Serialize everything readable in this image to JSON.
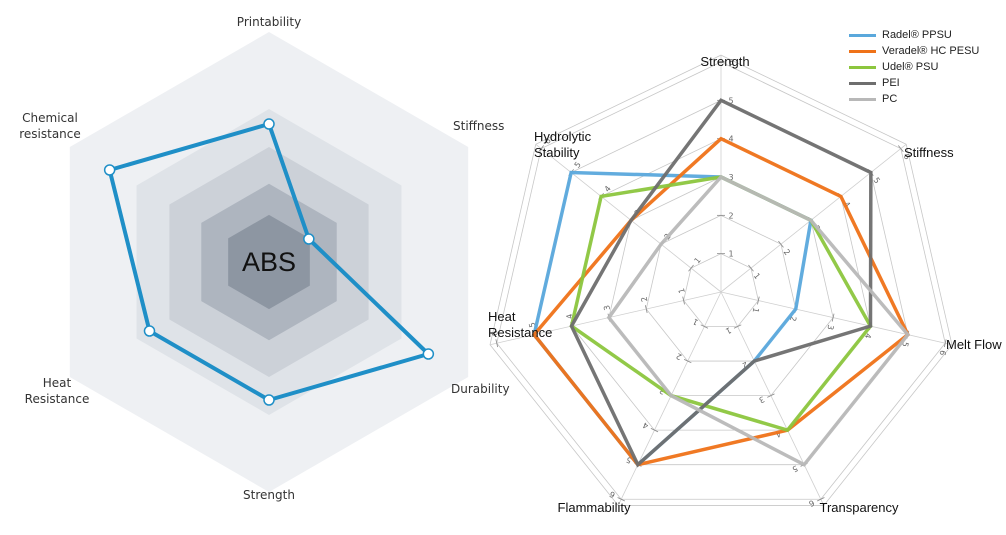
{
  "chart_data": [
    {
      "type": "radar",
      "center_label": "ABS",
      "axes": [
        "Printability",
        "Stiffness",
        "Durability",
        "Strength",
        "Heat Resistance",
        "Chemical resistance"
      ],
      "axis_labels": [
        [
          "Printability"
        ],
        [
          "Stiffness"
        ],
        [
          "Durability"
        ],
        [
          "Strength"
        ],
        [
          "Heat",
          "Resistance"
        ],
        [
          "Chemical",
          "resistance"
        ]
      ],
      "rings": 4,
      "series": [
        {
          "values": [
            3,
            1,
            4,
            3,
            3,
            4
          ],
          "color": "#1f8fc7"
        }
      ],
      "ylim": [
        0,
        5
      ]
    },
    {
      "type": "radar",
      "axes": [
        "Strength",
        "Stiffness",
        "Melt Flow",
        "Transparency",
        "Flammability",
        "Heat Resistance",
        "Hydrolytic Stability"
      ],
      "axis_labels": [
        [
          "Strength"
        ],
        [
          "Stiffness"
        ],
        [
          "Melt Flow"
        ],
        [
          "Transparency"
        ],
        [
          "Flammability"
        ],
        [
          "Heat",
          "Resistance"
        ],
        [
          "Hydrolytic",
          "Stability"
        ]
      ],
      "ticks": [
        1,
        2,
        3,
        4,
        5,
        6
      ],
      "ylim": [
        0,
        6
      ],
      "series": [
        {
          "name": "Radel® PPSU",
          "color": "#5aa8dc",
          "values": [
            3,
            3,
            2,
            2,
            5,
            5,
            5
          ]
        },
        {
          "name": "Veradel® HC PESU",
          "color": "#ef7218",
          "values": [
            4,
            4,
            5,
            4,
            5,
            5,
            3
          ]
        },
        {
          "name": "Udel® PSU",
          "color": "#8cc63e",
          "values": [
            3,
            3,
            4,
            4,
            3,
            4,
            4
          ]
        },
        {
          "name": "PEI",
          "color": "#6e6e6e",
          "values": [
            5,
            5,
            4,
            2,
            5,
            4,
            3
          ]
        },
        {
          "name": "PC",
          "color": "#b8b8b8",
          "values": [
            3,
            3,
            5,
            5,
            3,
            3,
            2
          ]
        }
      ]
    }
  ]
}
